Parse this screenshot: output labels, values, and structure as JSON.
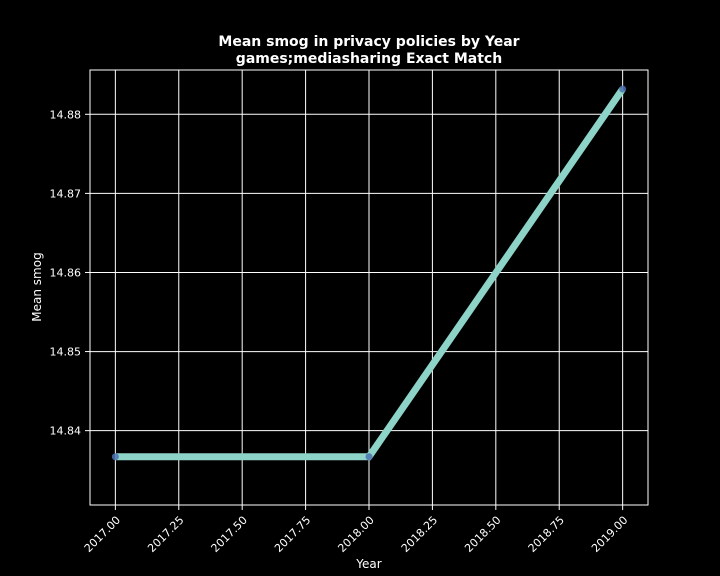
{
  "chart_data": {
    "type": "line",
    "title": "Mean smog in privacy policies by Year",
    "subtitle": "games;mediasharing Exact Match",
    "xlabel": "Year",
    "ylabel": "Mean smog",
    "x": [
      2017,
      2018,
      2019
    ],
    "series": [
      {
        "values": [
          14.8367,
          14.8367,
          14.8832
        ]
      }
    ],
    "xlim": [
      2016.9,
      2019.1
    ],
    "ylim": [
      14.8306,
      14.8856
    ],
    "xticks": [
      2017.0,
      2017.25,
      2017.5,
      2017.75,
      2018.0,
      2018.25,
      2018.5,
      2018.75,
      2019.0
    ],
    "xtick_labels": [
      "2017.00",
      "2017.25",
      "2017.50",
      "2017.75",
      "2018.00",
      "2018.25",
      "2018.50",
      "2018.75",
      "2019.00"
    ],
    "yticks": [
      14.84,
      14.85,
      14.86,
      14.87,
      14.88
    ],
    "ytick_labels": [
      "14.84",
      "14.85",
      "14.86",
      "14.87",
      "14.88"
    ],
    "grid": true,
    "colors": {
      "background": "#000000",
      "line": "#8dd3c7",
      "marker": "#4c72b0",
      "grid": "#ffffff",
      "text": "#ffffff"
    }
  }
}
